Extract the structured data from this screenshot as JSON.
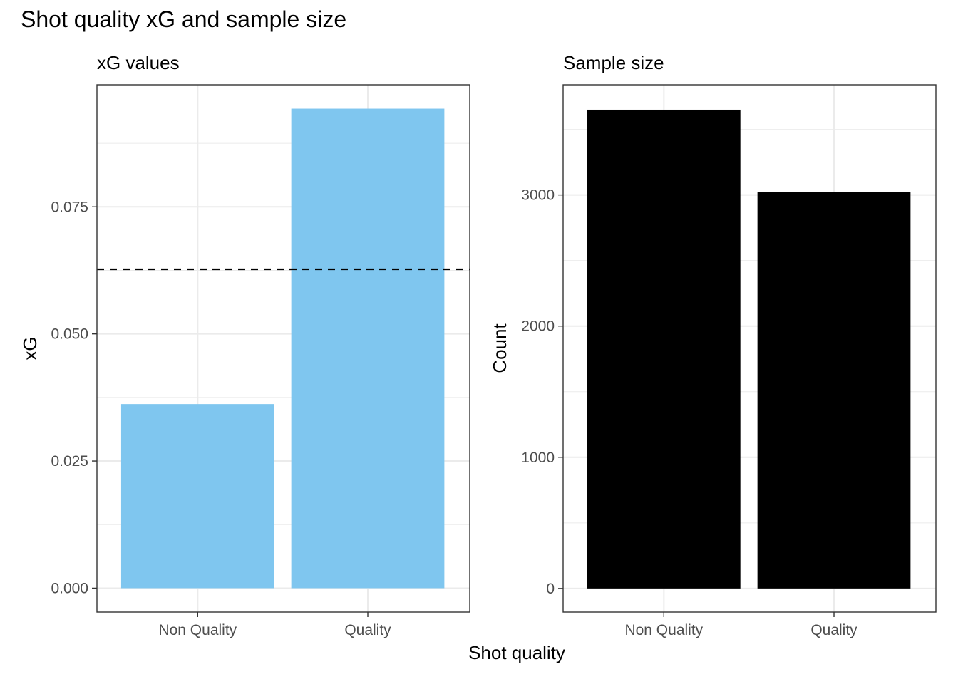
{
  "title": "Shot quality xG and sample size",
  "shared_xlabel": "Shot quality",
  "colors": {
    "xg_bar": "#7fc6ef",
    "count_bar": "#000000",
    "grid": "#ebebeb",
    "panel_border": "#333333",
    "reference_line": "#000000"
  },
  "chart_data": [
    {
      "type": "bar",
      "title": "xG values",
      "xlabel": "Shot quality",
      "ylabel": "xG",
      "categories": [
        "Non Quality",
        "Quality"
      ],
      "values": [
        0.0362,
        0.0943
      ],
      "ylim": [
        -0.0047,
        0.099
      ],
      "yticks": [
        0.0,
        0.025,
        0.05,
        0.075
      ],
      "ytick_labels": [
        "0.000",
        "0.025",
        "0.050",
        "0.075"
      ],
      "reference_line": {
        "value": 0.0627,
        "style": "dashed"
      },
      "grid": true,
      "legend": "none"
    },
    {
      "type": "bar",
      "title": "Sample size",
      "xlabel": "Shot quality",
      "ylabel": "Count",
      "categories": [
        "Non Quality",
        "Quality"
      ],
      "values": [
        3650,
        3025
      ],
      "ylim": [
        -180,
        3840
      ],
      "yticks": [
        0,
        1000,
        2000,
        3000
      ],
      "ytick_labels": [
        "0",
        "1000",
        "2000",
        "3000"
      ],
      "grid": true,
      "legend": "none"
    }
  ]
}
